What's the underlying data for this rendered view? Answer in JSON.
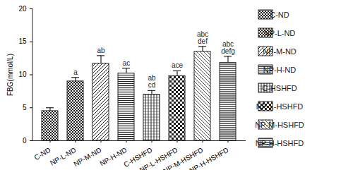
{
  "chart_data": {
    "type": "bar",
    "y_label": "FBG(mmol/L)",
    "categories": [
      "C-ND",
      "NP-L-ND",
      "NP-M-ND",
      "NP-H-ND",
      "C-HSHFD",
      "NP-L-HSHFD",
      "NP-M-HSHFD",
      "NP-H-HSHFD"
    ],
    "values": [
      4.5,
      9.0,
      11.7,
      10.2,
      7.0,
      9.8,
      13.5,
      11.8
    ],
    "errors": [
      0.5,
      0.6,
      1.2,
      0.8,
      0.6,
      0.8,
      0.8,
      1.0
    ],
    "annotations": [
      null,
      [
        "a"
      ],
      [
        "ab"
      ],
      [
        "ac"
      ],
      [
        "ab",
        "cd"
      ],
      [
        "ace"
      ],
      [
        "abc",
        "def"
      ],
      [
        "abc",
        "defg"
      ]
    ],
    "color": "#222222",
    "ylim": [
      0,
      20
    ],
    "yticks": [
      0,
      5,
      10,
      15,
      20
    ],
    "legend": "right"
  }
}
